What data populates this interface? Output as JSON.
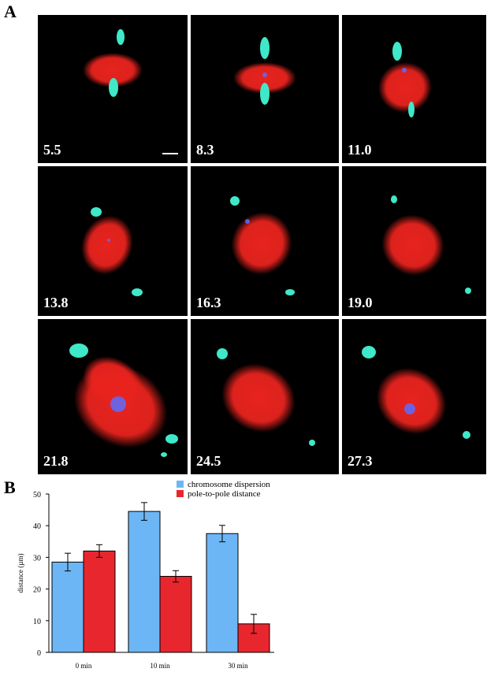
{
  "figure": {
    "panel_a_label": "A",
    "panel_b_label": "B",
    "timepoints": [
      "5.5",
      "8.3",
      "11.0",
      "13.8",
      "16.3",
      "19.0",
      "21.8",
      "24.5",
      "27.3"
    ],
    "colors": {
      "spindle": "#e8231e",
      "centrosome": "#3fe8c8",
      "chromosome": "#5a6cff"
    }
  },
  "chart_data": {
    "type": "bar",
    "categories": [
      "0 min",
      "10 min",
      "30 min"
    ],
    "series": [
      {
        "name": "chromosome dispersion",
        "values": [
          28.5,
          44.5,
          37.5
        ],
        "errors": [
          2.8,
          2.8,
          2.6
        ],
        "color": "#6db6f5"
      },
      {
        "name": "pole-to-pole distance",
        "values": [
          32.0,
          24.0,
          9.0
        ],
        "errors": [
          2.0,
          1.8,
          3.0
        ],
        "color": "#e8262e"
      }
    ],
    "ylabel": "distance (µm)",
    "xlabel": "",
    "ylim": [
      0,
      50
    ],
    "yticks": [
      "0",
      "10",
      "20",
      "30",
      "40",
      "50"
    ],
    "legend_position": "top-center"
  }
}
